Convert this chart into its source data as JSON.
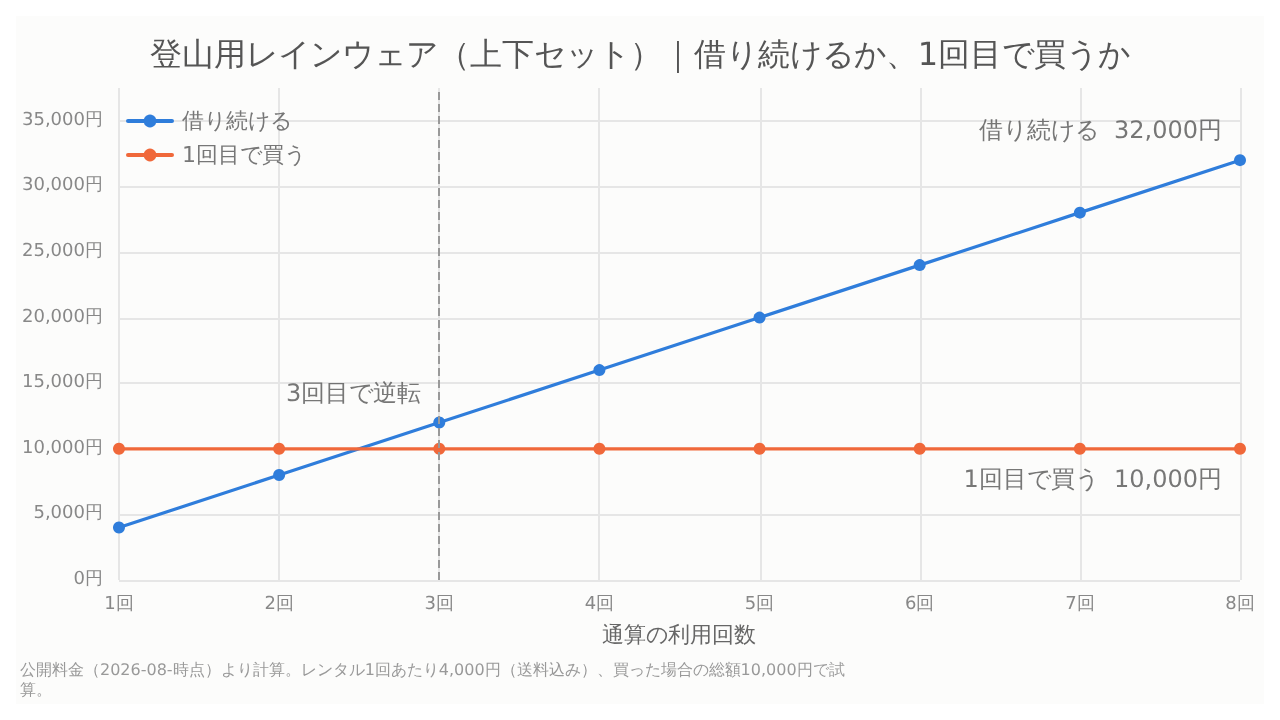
{
  "chart_data": {
    "type": "line",
    "title": "登山用レインウェア（上下セット）｜借り続けるか、1回目で買うか",
    "xlabel": "通算の利用回数",
    "categories": [
      "1回",
      "2回",
      "3回",
      "4回",
      "5回",
      "6回",
      "7回",
      "8回"
    ],
    "series": [
      {
        "name": "借り続ける",
        "color": "#2f7ddb",
        "values": [
          4000,
          8000,
          12000,
          16000,
          20000,
          24000,
          28000,
          32000
        ]
      },
      {
        "name": "1回目で買う",
        "color": "#f0683a",
        "values": [
          10000,
          10000,
          10000,
          10000,
          10000,
          10000,
          10000,
          10000
        ]
      }
    ],
    "ylim": [
      0,
      37500
    ],
    "yticks": [
      {
        "value": 0,
        "label": "0円"
      },
      {
        "value": 5000,
        "label": "5,000円"
      },
      {
        "value": 10000,
        "label": "10,000円"
      },
      {
        "value": 15000,
        "label": "15,000円"
      },
      {
        "value": 20000,
        "label": "20,000円"
      },
      {
        "value": 25000,
        "label": "25,000円"
      },
      {
        "value": 30000,
        "label": "30,000円"
      },
      {
        "value": 35000,
        "label": "35,000円"
      }
    ],
    "grid": true,
    "legend": "top left",
    "marker": "circle",
    "line_style": "solid",
    "ref_lines": [
      {
        "axis": "x",
        "value": "3回",
        "color": "#999999",
        "line_style": "dashed"
      }
    ],
    "annotations": [
      {
        "text": "3回目で逆転",
        "x": "3回",
        "y": 12000
      },
      {
        "text": "借り続ける  32,000円",
        "x": "8回",
        "y": 32000
      },
      {
        "text": "1回目で買う  10,000円",
        "x": "8回",
        "y": 10000
      },
      "公開料金（2026-08-時点）より計算。レンタル1回あたり4,000円（送料込み）、買った場合の総額10,000円で試算。"
    ]
  }
}
